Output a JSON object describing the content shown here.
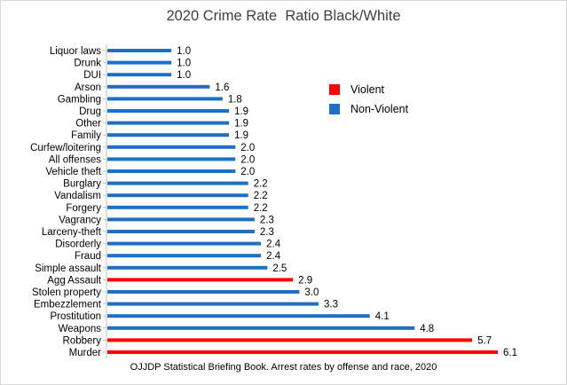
{
  "chart_data": {
    "type": "bar",
    "orientation": "horizontal",
    "title": "2020 Crime Rate  Ratio Black/White",
    "source_note": "OJJDP Statistical Briefing Book. Arrest rates by offense and race, 2020",
    "xlim": [
      0,
      6.1
    ],
    "grid": false,
    "legend_position": "top-right",
    "legend": [
      {
        "name": "Violent",
        "color": "#ff0000"
      },
      {
        "name": "Non-Violent",
        "color": "#1f6fc5"
      }
    ],
    "categories": [
      "Liquor laws",
      "Drunk",
      "DUI",
      "Arson",
      "Gambling",
      "Drug",
      "Other",
      "Family",
      "Curfew/loitering",
      "All offenses",
      "Vehicle theft",
      "Burglary",
      "Vandalism",
      "Forgery",
      "Vagrancy",
      "Larceny-theft",
      "Disorderly",
      "Fraud",
      "Simple assault",
      "Agg Assault",
      "Stolen property",
      "Embezzlement",
      "Prostitution",
      "Weapons",
      "Robbery",
      "Murder"
    ],
    "values": [
      1.0,
      1.0,
      1.0,
      1.6,
      1.8,
      1.9,
      1.9,
      1.9,
      2.0,
      2.0,
      2.0,
      2.2,
      2.2,
      2.2,
      2.3,
      2.3,
      2.4,
      2.4,
      2.5,
      2.9,
      3.0,
      3.3,
      4.1,
      4.8,
      5.7,
      6.1
    ],
    "labels": [
      "1.0",
      "1.0",
      "1.0",
      "1.6",
      "1.8",
      "1.9",
      "1.9",
      "1.9",
      "2.0",
      "2.0",
      "2.0",
      "2.2",
      "2.2",
      "2.2",
      "2.3",
      "2.3",
      "2.4",
      "2.4",
      "2.5",
      "2.9",
      "3.0",
      "3.3",
      "4.1",
      "4.8",
      "5.7",
      "6.1"
    ],
    "series_class": [
      "Non-Violent",
      "Non-Violent",
      "Non-Violent",
      "Non-Violent",
      "Non-Violent",
      "Non-Violent",
      "Non-Violent",
      "Non-Violent",
      "Non-Violent",
      "Non-Violent",
      "Non-Violent",
      "Non-Violent",
      "Non-Violent",
      "Non-Violent",
      "Non-Violent",
      "Non-Violent",
      "Non-Violent",
      "Non-Violent",
      "Non-Violent",
      "Violent",
      "Non-Violent",
      "Non-Violent",
      "Non-Violent",
      "Non-Violent",
      "Violent",
      "Violent"
    ]
  }
}
